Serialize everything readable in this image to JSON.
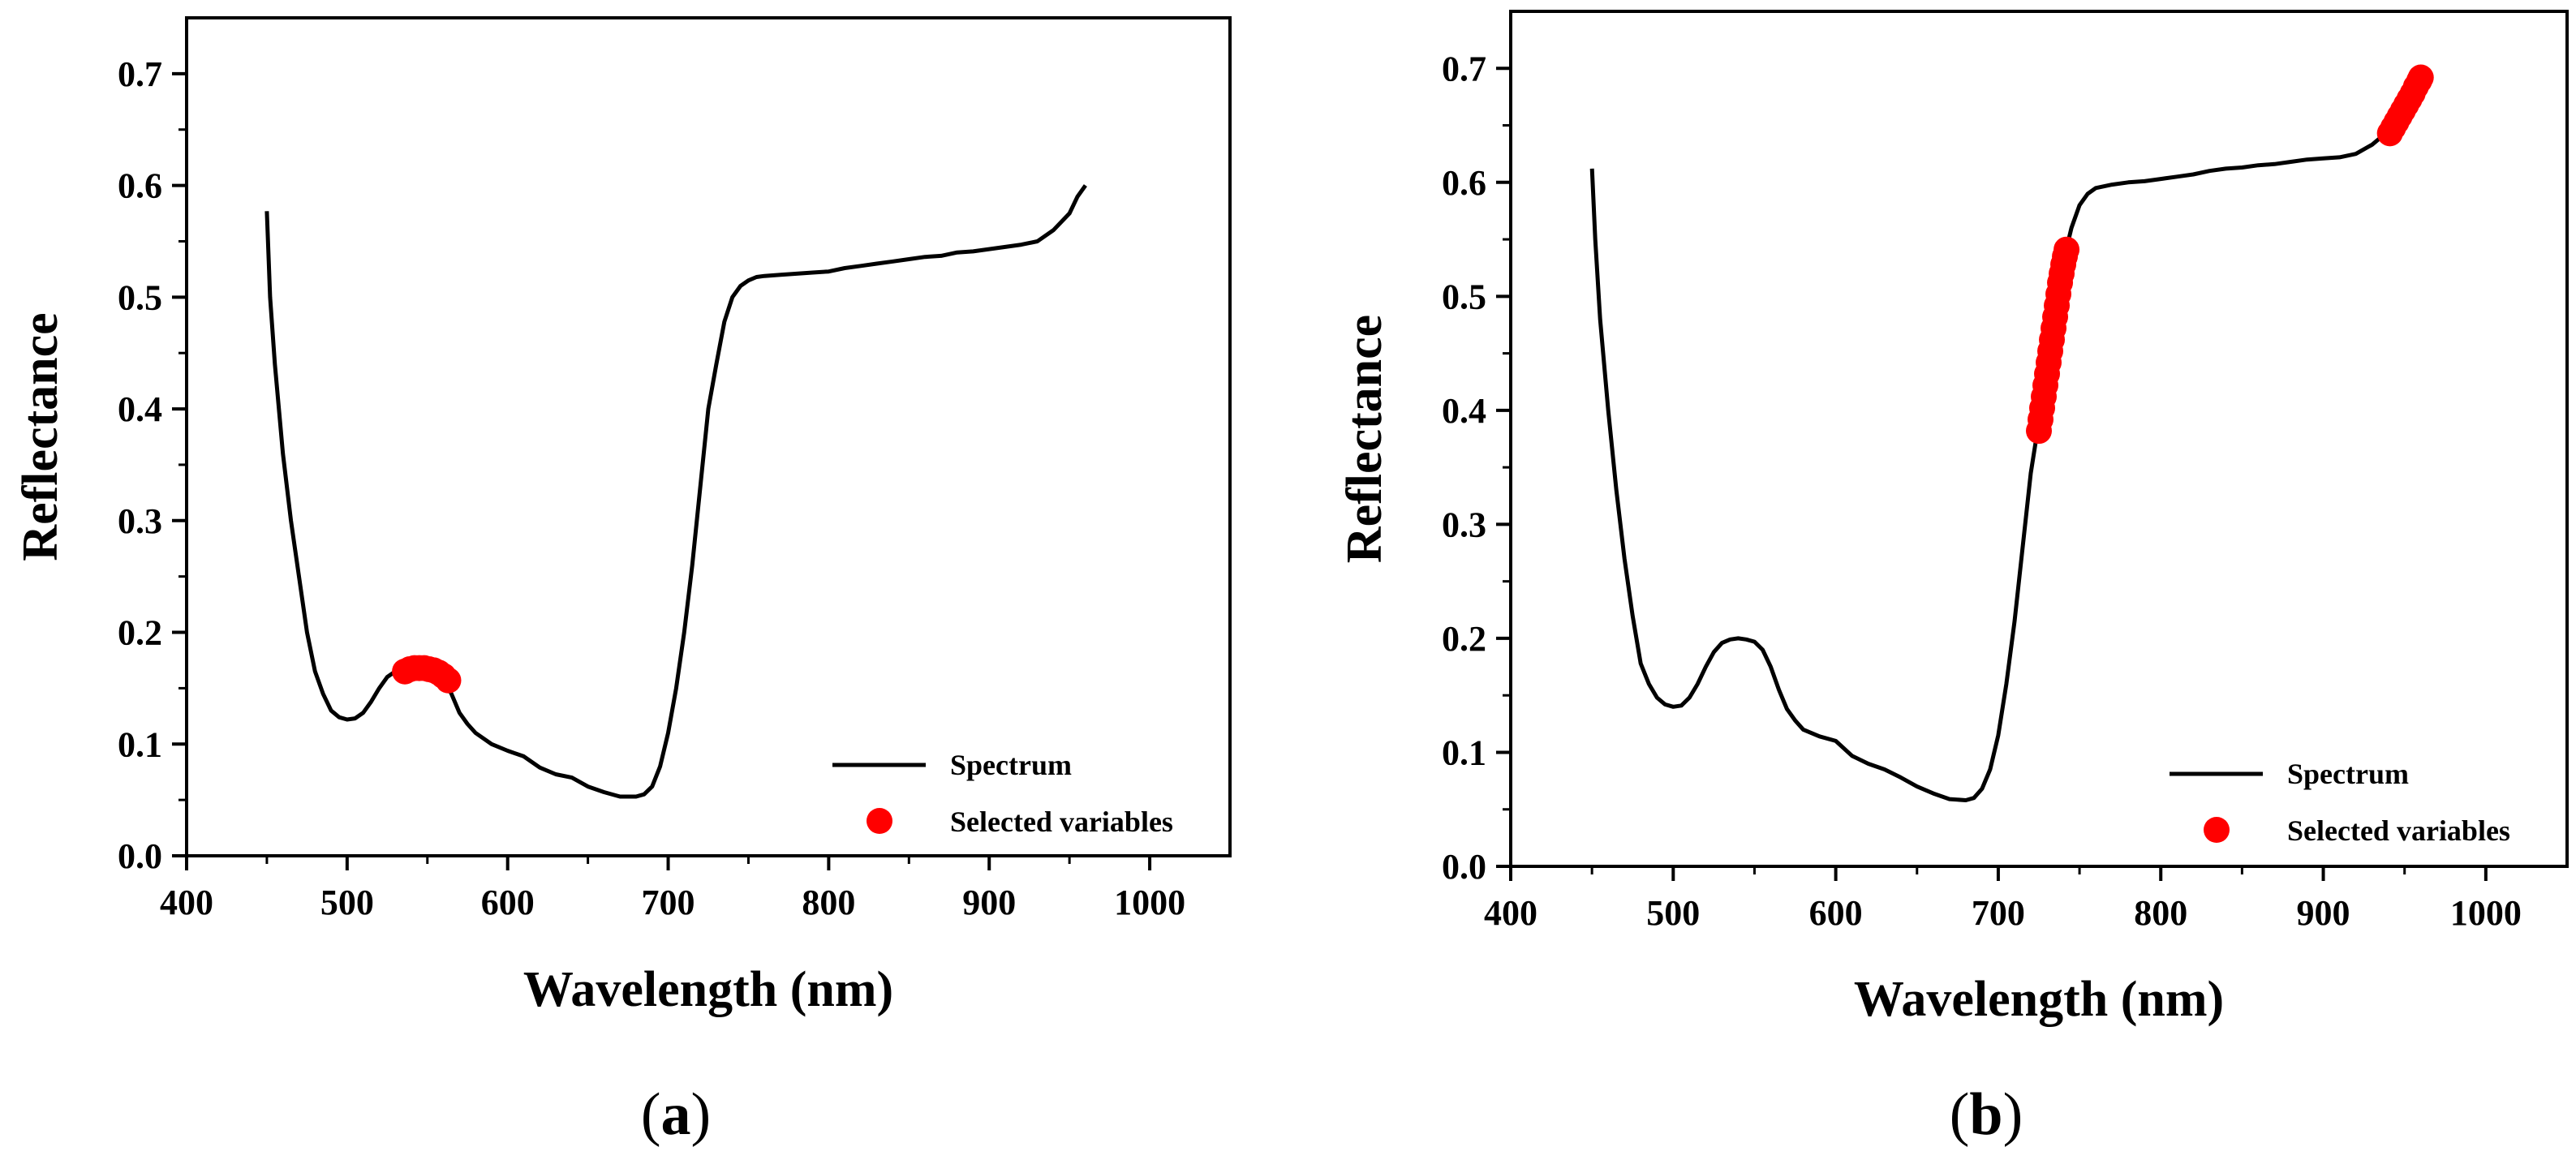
{
  "colors": {
    "line": "#000000",
    "marker": "#ff0000",
    "background": "#ffffff"
  },
  "chart_data": [
    {
      "type": "line",
      "panel_label": {
        "open": "(",
        "letter": "a",
        "close": ")"
      },
      "xlabel": "Wavelength (nm)",
      "ylabel": "Reflectance",
      "xlim": [
        400,
        1050
      ],
      "ylim": [
        0.0,
        0.75
      ],
      "xticks": [
        400,
        500,
        600,
        700,
        800,
        900,
        1000
      ],
      "xtick_labels": [
        "400",
        "500",
        "600",
        "700",
        "800",
        "900",
        "1000"
      ],
      "yticks": [
        0.0,
        0.1,
        0.2,
        0.3,
        0.4,
        0.5,
        0.6,
        0.7
      ],
      "ytick_labels": [
        "0.0",
        "0.1",
        "0.2",
        "0.3",
        "0.4",
        "0.5",
        "0.6",
        "0.7"
      ],
      "legend": {
        "position": "bottom-right",
        "entries": [
          "Spectrum",
          "Selected variables"
        ]
      },
      "series": [
        {
          "name": "Spectrum",
          "style": "line",
          "x": [
            450,
            452,
            455,
            460,
            465,
            470,
            475,
            480,
            485,
            490,
            495,
            500,
            505,
            510,
            515,
            520,
            525,
            530,
            535,
            540,
            545,
            550,
            555,
            560,
            565,
            570,
            575,
            580,
            590,
            600,
            610,
            620,
            630,
            640,
            650,
            660,
            670,
            680,
            685,
            690,
            695,
            700,
            705,
            710,
            715,
            720,
            725,
            730,
            735,
            740,
            745,
            750,
            755,
            760,
            770,
            780,
            790,
            800,
            810,
            820,
            830,
            840,
            850,
            860,
            870,
            880,
            890,
            900,
            910,
            920,
            930,
            940,
            950,
            955,
            960
          ],
          "y": [
            0.577,
            0.5,
            0.44,
            0.36,
            0.3,
            0.25,
            0.2,
            0.165,
            0.145,
            0.13,
            0.124,
            0.122,
            0.123,
            0.128,
            0.138,
            0.15,
            0.16,
            0.165,
            0.167,
            0.168,
            0.168,
            0.167,
            0.165,
            0.158,
            0.145,
            0.128,
            0.118,
            0.11,
            0.1,
            0.094,
            0.089,
            0.079,
            0.073,
            0.07,
            0.062,
            0.057,
            0.053,
            0.053,
            0.055,
            0.062,
            0.08,
            0.11,
            0.15,
            0.2,
            0.26,
            0.33,
            0.4,
            0.44,
            0.478,
            0.5,
            0.51,
            0.515,
            0.518,
            0.519,
            0.52,
            0.521,
            0.522,
            0.523,
            0.526,
            0.528,
            0.53,
            0.532,
            0.534,
            0.536,
            0.537,
            0.54,
            0.541,
            0.543,
            0.545,
            0.547,
            0.55,
            0.56,
            0.575,
            0.59,
            0.6
          ]
        },
        {
          "name": "Selected variables",
          "style": "markers",
          "x": [
            536,
            539,
            542,
            545,
            548,
            551,
            554,
            557,
            560,
            563
          ],
          "y": [
            0.165,
            0.167,
            0.168,
            0.168,
            0.168,
            0.167,
            0.166,
            0.164,
            0.161,
            0.157
          ]
        }
      ]
    },
    {
      "type": "line",
      "panel_label": {
        "open": "(",
        "letter": "b",
        "close": ")"
      },
      "xlabel": "Wavelength (nm)",
      "ylabel": "Reflectance",
      "xlim": [
        400,
        1050
      ],
      "ylim": [
        0.0,
        0.75
      ],
      "xticks": [
        400,
        500,
        600,
        700,
        800,
        900,
        1000
      ],
      "xtick_labels": [
        "400",
        "500",
        "600",
        "700",
        "800",
        "900",
        "1000"
      ],
      "yticks": [
        0.0,
        0.1,
        0.2,
        0.3,
        0.4,
        0.5,
        0.6,
        0.7
      ],
      "ytick_labels": [
        "0.0",
        "0.1",
        "0.2",
        "0.3",
        "0.4",
        "0.5",
        "0.6",
        "0.7"
      ],
      "legend": {
        "position": "bottom-right",
        "entries": [
          "Spectrum",
          "Selected variables"
        ]
      },
      "series": [
        {
          "name": "Spectrum",
          "style": "line",
          "x": [
            450,
            452,
            455,
            460,
            465,
            470,
            475,
            480,
            485,
            490,
            495,
            500,
            505,
            510,
            515,
            520,
            525,
            530,
            535,
            540,
            545,
            550,
            555,
            560,
            565,
            570,
            575,
            580,
            590,
            600,
            610,
            620,
            630,
            640,
            650,
            660,
            670,
            680,
            685,
            690,
            695,
            700,
            705,
            710,
            715,
            720,
            725,
            730,
            735,
            740,
            745,
            750,
            755,
            760,
            770,
            780,
            790,
            800,
            810,
            820,
            830,
            840,
            850,
            860,
            870,
            880,
            890,
            900,
            910,
            920,
            930,
            940,
            950,
            955,
            960
          ],
          "y": [
            0.612,
            0.55,
            0.48,
            0.4,
            0.33,
            0.27,
            0.22,
            0.178,
            0.16,
            0.148,
            0.142,
            0.14,
            0.141,
            0.148,
            0.16,
            0.175,
            0.188,
            0.196,
            0.199,
            0.2,
            0.199,
            0.197,
            0.19,
            0.175,
            0.155,
            0.138,
            0.128,
            0.12,
            0.114,
            0.11,
            0.097,
            0.09,
            0.085,
            0.078,
            0.07,
            0.064,
            0.059,
            0.058,
            0.06,
            0.068,
            0.085,
            0.115,
            0.16,
            0.215,
            0.28,
            0.345,
            0.39,
            0.445,
            0.495,
            0.53,
            0.56,
            0.58,
            0.59,
            0.595,
            0.598,
            0.6,
            0.601,
            0.603,
            0.605,
            0.607,
            0.61,
            0.612,
            0.613,
            0.615,
            0.616,
            0.618,
            0.62,
            0.621,
            0.622,
            0.625,
            0.633,
            0.645,
            0.662,
            0.678,
            0.692
          ]
        },
        {
          "name": "Selected variables",
          "style": "markers",
          "x": [
            725,
            726,
            727,
            728,
            729,
            730,
            731,
            732,
            733,
            734,
            735,
            736,
            737,
            738,
            739,
            740,
            741,
            742,
            941,
            943,
            945,
            947,
            949,
            951,
            953,
            955,
            957,
            959,
            960
          ],
          "y": [
            0.382,
            0.392,
            0.402,
            0.412,
            0.422,
            0.432,
            0.442,
            0.452,
            0.462,
            0.472,
            0.482,
            0.492,
            0.502,
            0.512,
            0.52,
            0.528,
            0.535,
            0.541,
            0.643,
            0.648,
            0.653,
            0.658,
            0.663,
            0.668,
            0.673,
            0.678,
            0.684,
            0.689,
            0.692
          ]
        }
      ]
    }
  ]
}
